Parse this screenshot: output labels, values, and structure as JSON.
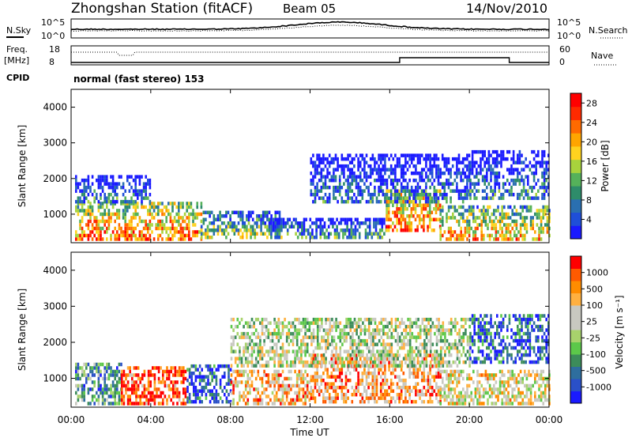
{
  "header": {
    "title": "Zhongshan Station (fitACF)",
    "beam": "Beam 05",
    "date": "14/Nov/2010",
    "cpid_label": "CPID",
    "cpid_value": "normal (fast stereo) 153"
  },
  "noise_panel": {
    "left_label": "N.Sky",
    "left_ticks": [
      "10^5",
      "10^0"
    ],
    "right_ticks": [
      "10^5",
      "10^0"
    ],
    "right_label": "N.Search"
  },
  "freq_panel": {
    "left_label_1": "Freq.",
    "left_label_2": "[MHz]",
    "left_ticks": [
      "18",
      "8"
    ],
    "right_ticks": [
      "60",
      "0"
    ],
    "right_label": "Nave"
  },
  "chart_data": [
    {
      "type": "heatmap",
      "quantity": "power",
      "ylabel": "Slant Range [km]",
      "ylim": [
        200,
        4500
      ],
      "y_ticks": [
        "1000",
        "2000",
        "3000",
        "4000"
      ],
      "colorbar": {
        "label": "Power [dB]",
        "ticks": [
          "4",
          "8",
          "12",
          "16",
          "20",
          "24",
          "28"
        ],
        "range": [
          0,
          30
        ],
        "colors": [
          "#1a1aff",
          "#1f4fd8",
          "#2a6fb0",
          "#2e8c6a",
          "#55b15a",
          "#a8d23c",
          "#ffd21f",
          "#ffa500",
          "#ff6a00",
          "#ff2a00",
          "#ff0000"
        ]
      },
      "echo_regions": [
        {
          "t0": 0.2,
          "t1": 6.5,
          "r0": 250,
          "r1": 1300,
          "level": 0.8
        },
        {
          "t0": 6.5,
          "t1": 10.5,
          "r0": 300,
          "r1": 1000,
          "level": 0.5
        },
        {
          "t0": 10.0,
          "t1": 15.8,
          "r0": 300,
          "r1": 800,
          "level": 0.35
        },
        {
          "t0": 15.8,
          "t1": 18.5,
          "r0": 500,
          "r1": 1600,
          "level": 0.85
        },
        {
          "t0": 18.5,
          "t1": 24.0,
          "r0": 250,
          "r1": 1200,
          "level": 0.7
        },
        {
          "t0": 0.2,
          "t1": 4.0,
          "r0": 1300,
          "r1": 2000,
          "level": 0.3
        },
        {
          "t0": 12.0,
          "t1": 20.0,
          "r0": 1300,
          "r1": 2600,
          "level": 0.25
        },
        {
          "t0": 20.0,
          "t1": 24.0,
          "r0": 1400,
          "r1": 2700,
          "level": 0.3
        }
      ]
    },
    {
      "type": "heatmap",
      "quantity": "velocity",
      "ylabel": "Slant Range [km]",
      "ylim": [
        200,
        4500
      ],
      "y_ticks": [
        "1000",
        "2000",
        "3000",
        "4000"
      ],
      "colorbar": {
        "label": "Velocity [m s⁻¹]",
        "ticks": [
          "1000",
          "500",
          "100",
          "25",
          "-25",
          "-100",
          "-500",
          "-1000"
        ],
        "colors": [
          "#1a1aff",
          "#2a50c8",
          "#2e6e9e",
          "#3c8c5a",
          "#5cc84a",
          "#a8d26c",
          "#c8c8c0",
          "#c8c8c0",
          "#ffb040",
          "#ff8c00",
          "#ff5a00",
          "#ff0000"
        ]
      },
      "echo_regions": [
        {
          "t0": 0.2,
          "t1": 2.5,
          "r0": 250,
          "r1": 1400,
          "level": 0.3
        },
        {
          "t0": 2.5,
          "t1": 5.8,
          "r0": 250,
          "r1": 1300,
          "level": 0.9
        },
        {
          "t0": 5.8,
          "t1": 8.0,
          "r0": 300,
          "r1": 1300,
          "level": 0.1
        },
        {
          "t0": 8.0,
          "t1": 12.0,
          "r0": 250,
          "r1": 1200,
          "level": 0.7
        },
        {
          "t0": 12.0,
          "t1": 18.5,
          "r0": 300,
          "r1": 1600,
          "level": 0.75
        },
        {
          "t0": 18.5,
          "t1": 24.0,
          "r0": 250,
          "r1": 1200,
          "level": 0.6
        },
        {
          "t0": 8.0,
          "t1": 20.0,
          "r0": 1300,
          "r1": 2600,
          "level": 0.5
        },
        {
          "t0": 20.0,
          "t1": 24.0,
          "r0": 1400,
          "r1": 2700,
          "level": 0.15
        }
      ]
    }
  ],
  "x_axis": {
    "label": "Time UT",
    "ticks": [
      "00:00",
      "04:00",
      "08:00",
      "12:00",
      "16:00",
      "20:00",
      "00:00"
    ],
    "range_hours": [
      0,
      24
    ]
  }
}
